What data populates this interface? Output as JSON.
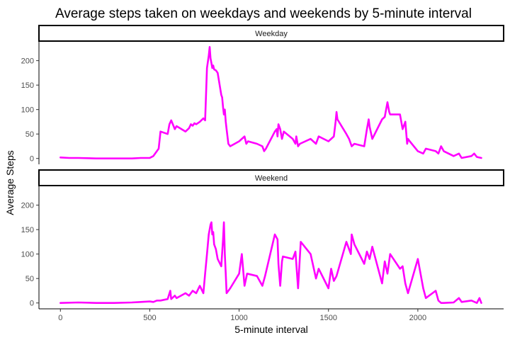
{
  "chart_data": {
    "type": "line",
    "title": "Average steps taken on weekdays and weekends by 5-minute interval",
    "xlabel": "5-minute interval",
    "ylabel": "Average Steps",
    "xlim": [
      -120,
      2480
    ],
    "ylim": [
      -12,
      240
    ],
    "xticks": [
      0,
      500,
      1000,
      1500,
      2000
    ],
    "yticks": [
      0,
      50,
      100,
      150,
      200
    ],
    "grid": false,
    "line_color": "#ff00ff",
    "facets": [
      {
        "name": "Weekday",
        "x": [
          0,
          50,
          100,
          200,
          300,
          400,
          450,
          500,
          520,
          550,
          560,
          600,
          610,
          620,
          640,
          650,
          700,
          720,
          730,
          740,
          750,
          760,
          780,
          800,
          810,
          820,
          830,
          835,
          840,
          845,
          850,
          855,
          860,
          870,
          880,
          900,
          905,
          910,
          915,
          920,
          925,
          930,
          940,
          950,
          1000,
          1030,
          1040,
          1050,
          1100,
          1130,
          1140,
          1150,
          1200,
          1210,
          1215,
          1220,
          1230,
          1240,
          1250,
          1300,
          1315,
          1320,
          1330,
          1340,
          1400,
          1430,
          1445,
          1500,
          1530,
          1540,
          1545,
          1550,
          1600,
          1615,
          1630,
          1645,
          1700,
          1715,
          1725,
          1730,
          1745,
          1800,
          1815,
          1830,
          1840,
          1845,
          1850,
          1900,
          1915,
          1930,
          1940,
          1945,
          1955,
          2000,
          2030,
          2045,
          2100,
          2115,
          2130,
          2145,
          2200,
          2230,
          2245,
          2300,
          2315,
          2330,
          2355
        ],
        "y": [
          2,
          1,
          1,
          0,
          0,
          0,
          1,
          1,
          5,
          20,
          55,
          50,
          70,
          78,
          60,
          66,
          55,
          62,
          70,
          67,
          72,
          70,
          75,
          82,
          78,
          185,
          210,
          228,
          205,
          195,
          185,
          190,
          182,
          180,
          175,
          130,
          125,
          105,
          90,
          100,
          75,
          60,
          30,
          25,
          35,
          45,
          30,
          35,
          30,
          25,
          15,
          20,
          55,
          60,
          45,
          70,
          60,
          40,
          55,
          40,
          30,
          45,
          25,
          30,
          40,
          30,
          45,
          35,
          45,
          75,
          95,
          80,
          50,
          40,
          25,
          30,
          25,
          60,
          80,
          65,
          40,
          80,
          85,
          115,
          95,
          90,
          90,
          90,
          60,
          75,
          30,
          40,
          35,
          15,
          10,
          20,
          15,
          10,
          25,
          15,
          5,
          10,
          1,
          5,
          10,
          3,
          1
        ]
      },
      {
        "name": "Weekend",
        "x": [
          0,
          100,
          200,
          300,
          400,
          450,
          500,
          520,
          540,
          560,
          600,
          615,
          620,
          640,
          650,
          700,
          720,
          740,
          760,
          780,
          800,
          810,
          820,
          830,
          840,
          845,
          850,
          855,
          860,
          870,
          880,
          900,
          910,
          915,
          920,
          925,
          930,
          950,
          1000,
          1015,
          1030,
          1045,
          1100,
          1115,
          1130,
          1145,
          1200,
          1215,
          1220,
          1230,
          1240,
          1245,
          1300,
          1315,
          1330,
          1345,
          1400,
          1430,
          1445,
          1500,
          1515,
          1530,
          1545,
          1600,
          1615,
          1625,
          1630,
          1645,
          1700,
          1715,
          1730,
          1745,
          1800,
          1815,
          1830,
          1845,
          1900,
          1915,
          1930,
          1945,
          2000,
          2015,
          2030,
          2045,
          2100,
          2115,
          2130,
          2145,
          2200,
          2230,
          2245,
          2300,
          2330,
          2345,
          2355
        ],
        "y": [
          0,
          1,
          0,
          0,
          1,
          2,
          3,
          2,
          5,
          5,
          8,
          25,
          8,
          15,
          10,
          20,
          15,
          25,
          20,
          35,
          20,
          60,
          100,
          140,
          160,
          165,
          140,
          145,
          120,
          110,
          90,
          75,
          130,
          165,
          100,
          60,
          20,
          30,
          60,
          100,
          35,
          60,
          55,
          45,
          35,
          55,
          140,
          130,
          80,
          35,
          85,
          95,
          90,
          105,
          30,
          125,
          100,
          50,
          70,
          30,
          70,
          45,
          55,
          125,
          110,
          100,
          140,
          120,
          80,
          105,
          90,
          115,
          40,
          85,
          60,
          100,
          70,
          75,
          40,
          20,
          90,
          60,
          30,
          10,
          25,
          5,
          0,
          0,
          1,
          10,
          2,
          5,
          0,
          10,
          0
        ]
      }
    ]
  }
}
